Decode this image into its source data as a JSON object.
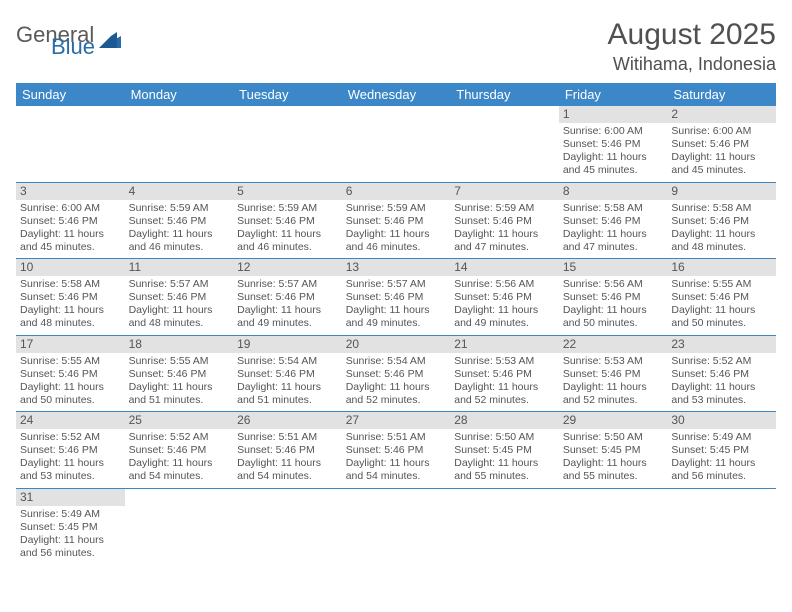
{
  "logo": {
    "general": "General",
    "blue": "Blue"
  },
  "title": "August 2025",
  "location": "Witihama, Indonesia",
  "colors": {
    "header_bg": "#3b87c8",
    "header_fg": "#ffffff",
    "daynum_bg": "#e2e2e2",
    "border": "#3b87c8",
    "text": "#555555",
    "logo_blue": "#2a6ca8"
  },
  "weekdays": [
    "Sunday",
    "Monday",
    "Tuesday",
    "Wednesday",
    "Thursday",
    "Friday",
    "Saturday"
  ],
  "weeks": [
    [
      null,
      null,
      null,
      null,
      null,
      {
        "d": "1",
        "sr": "Sunrise: 6:00 AM",
        "ss": "Sunset: 5:46 PM",
        "dl1": "Daylight: 11 hours",
        "dl2": "and 45 minutes."
      },
      {
        "d": "2",
        "sr": "Sunrise: 6:00 AM",
        "ss": "Sunset: 5:46 PM",
        "dl1": "Daylight: 11 hours",
        "dl2": "and 45 minutes."
      }
    ],
    [
      {
        "d": "3",
        "sr": "Sunrise: 6:00 AM",
        "ss": "Sunset: 5:46 PM",
        "dl1": "Daylight: 11 hours",
        "dl2": "and 45 minutes."
      },
      {
        "d": "4",
        "sr": "Sunrise: 5:59 AM",
        "ss": "Sunset: 5:46 PM",
        "dl1": "Daylight: 11 hours",
        "dl2": "and 46 minutes."
      },
      {
        "d": "5",
        "sr": "Sunrise: 5:59 AM",
        "ss": "Sunset: 5:46 PM",
        "dl1": "Daylight: 11 hours",
        "dl2": "and 46 minutes."
      },
      {
        "d": "6",
        "sr": "Sunrise: 5:59 AM",
        "ss": "Sunset: 5:46 PM",
        "dl1": "Daylight: 11 hours",
        "dl2": "and 46 minutes."
      },
      {
        "d": "7",
        "sr": "Sunrise: 5:59 AM",
        "ss": "Sunset: 5:46 PM",
        "dl1": "Daylight: 11 hours",
        "dl2": "and 47 minutes."
      },
      {
        "d": "8",
        "sr": "Sunrise: 5:58 AM",
        "ss": "Sunset: 5:46 PM",
        "dl1": "Daylight: 11 hours",
        "dl2": "and 47 minutes."
      },
      {
        "d": "9",
        "sr": "Sunrise: 5:58 AM",
        "ss": "Sunset: 5:46 PM",
        "dl1": "Daylight: 11 hours",
        "dl2": "and 48 minutes."
      }
    ],
    [
      {
        "d": "10",
        "sr": "Sunrise: 5:58 AM",
        "ss": "Sunset: 5:46 PM",
        "dl1": "Daylight: 11 hours",
        "dl2": "and 48 minutes."
      },
      {
        "d": "11",
        "sr": "Sunrise: 5:57 AM",
        "ss": "Sunset: 5:46 PM",
        "dl1": "Daylight: 11 hours",
        "dl2": "and 48 minutes."
      },
      {
        "d": "12",
        "sr": "Sunrise: 5:57 AM",
        "ss": "Sunset: 5:46 PM",
        "dl1": "Daylight: 11 hours",
        "dl2": "and 49 minutes."
      },
      {
        "d": "13",
        "sr": "Sunrise: 5:57 AM",
        "ss": "Sunset: 5:46 PM",
        "dl1": "Daylight: 11 hours",
        "dl2": "and 49 minutes."
      },
      {
        "d": "14",
        "sr": "Sunrise: 5:56 AM",
        "ss": "Sunset: 5:46 PM",
        "dl1": "Daylight: 11 hours",
        "dl2": "and 49 minutes."
      },
      {
        "d": "15",
        "sr": "Sunrise: 5:56 AM",
        "ss": "Sunset: 5:46 PM",
        "dl1": "Daylight: 11 hours",
        "dl2": "and 50 minutes."
      },
      {
        "d": "16",
        "sr": "Sunrise: 5:55 AM",
        "ss": "Sunset: 5:46 PM",
        "dl1": "Daylight: 11 hours",
        "dl2": "and 50 minutes."
      }
    ],
    [
      {
        "d": "17",
        "sr": "Sunrise: 5:55 AM",
        "ss": "Sunset: 5:46 PM",
        "dl1": "Daylight: 11 hours",
        "dl2": "and 50 minutes."
      },
      {
        "d": "18",
        "sr": "Sunrise: 5:55 AM",
        "ss": "Sunset: 5:46 PM",
        "dl1": "Daylight: 11 hours",
        "dl2": "and 51 minutes."
      },
      {
        "d": "19",
        "sr": "Sunrise: 5:54 AM",
        "ss": "Sunset: 5:46 PM",
        "dl1": "Daylight: 11 hours",
        "dl2": "and 51 minutes."
      },
      {
        "d": "20",
        "sr": "Sunrise: 5:54 AM",
        "ss": "Sunset: 5:46 PM",
        "dl1": "Daylight: 11 hours",
        "dl2": "and 52 minutes."
      },
      {
        "d": "21",
        "sr": "Sunrise: 5:53 AM",
        "ss": "Sunset: 5:46 PM",
        "dl1": "Daylight: 11 hours",
        "dl2": "and 52 minutes."
      },
      {
        "d": "22",
        "sr": "Sunrise: 5:53 AM",
        "ss": "Sunset: 5:46 PM",
        "dl1": "Daylight: 11 hours",
        "dl2": "and 52 minutes."
      },
      {
        "d": "23",
        "sr": "Sunrise: 5:52 AM",
        "ss": "Sunset: 5:46 PM",
        "dl1": "Daylight: 11 hours",
        "dl2": "and 53 minutes."
      }
    ],
    [
      {
        "d": "24",
        "sr": "Sunrise: 5:52 AM",
        "ss": "Sunset: 5:46 PM",
        "dl1": "Daylight: 11 hours",
        "dl2": "and 53 minutes."
      },
      {
        "d": "25",
        "sr": "Sunrise: 5:52 AM",
        "ss": "Sunset: 5:46 PM",
        "dl1": "Daylight: 11 hours",
        "dl2": "and 54 minutes."
      },
      {
        "d": "26",
        "sr": "Sunrise: 5:51 AM",
        "ss": "Sunset: 5:46 PM",
        "dl1": "Daylight: 11 hours",
        "dl2": "and 54 minutes."
      },
      {
        "d": "27",
        "sr": "Sunrise: 5:51 AM",
        "ss": "Sunset: 5:46 PM",
        "dl1": "Daylight: 11 hours",
        "dl2": "and 54 minutes."
      },
      {
        "d": "28",
        "sr": "Sunrise: 5:50 AM",
        "ss": "Sunset: 5:45 PM",
        "dl1": "Daylight: 11 hours",
        "dl2": "and 55 minutes."
      },
      {
        "d": "29",
        "sr": "Sunrise: 5:50 AM",
        "ss": "Sunset: 5:45 PM",
        "dl1": "Daylight: 11 hours",
        "dl2": "and 55 minutes."
      },
      {
        "d": "30",
        "sr": "Sunrise: 5:49 AM",
        "ss": "Sunset: 5:45 PM",
        "dl1": "Daylight: 11 hours",
        "dl2": "and 56 minutes."
      }
    ],
    [
      {
        "d": "31",
        "sr": "Sunrise: 5:49 AM",
        "ss": "Sunset: 5:45 PM",
        "dl1": "Daylight: 11 hours",
        "dl2": "and 56 minutes."
      },
      null,
      null,
      null,
      null,
      null,
      null
    ]
  ]
}
